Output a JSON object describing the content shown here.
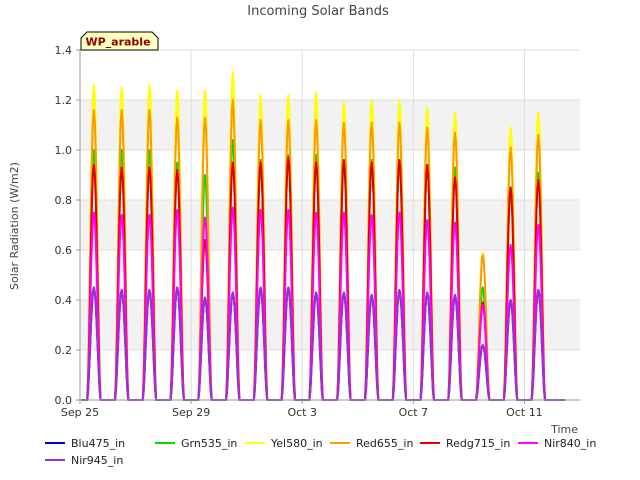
{
  "chart_data": {
    "type": "line",
    "title": "Incoming Solar Bands",
    "xlabel": "Time",
    "ylabel": "Solar Radiation (W/m2)",
    "ylim": [
      0,
      1.4
    ],
    "yticks": [
      "0.0",
      "0.2",
      "0.4",
      "0.6",
      "0.8",
      "1.0",
      "1.2",
      "1.4"
    ],
    "xlim_day": [
      0,
      18
    ],
    "xticks": [
      {
        "day": 0,
        "label": "Sep 25"
      },
      {
        "day": 4,
        "label": "Sep 29"
      },
      {
        "day": 8,
        "label": "Oct 3"
      },
      {
        "day": 12,
        "label": "Oct 7"
      },
      {
        "day": 16,
        "label": "Oct 11"
      }
    ],
    "annotation": "WP_arable",
    "grid": true,
    "legend_position": "bottom",
    "days": [
      0.5,
      1.5,
      2.5,
      3.5,
      4.5,
      5.5,
      6.5,
      7.5,
      8.5,
      9.5,
      10.5,
      11.5,
      12.5,
      13.5,
      14.5,
      15.5,
      16.5
    ],
    "series": [
      {
        "name": "Blu475_in",
        "color": "#0000cc",
        "peaks": [
          0.45,
          0.44,
          0.44,
          0.45,
          0.41,
          0.43,
          0.45,
          0.45,
          0.43,
          0.43,
          0.42,
          0.44,
          0.43,
          0.42,
          0.22,
          0.4,
          0.44
        ]
      },
      {
        "name": "Grn535_in",
        "color": "#00dd00",
        "peaks": [
          1.0,
          1.0,
          1.0,
          0.95,
          0.9,
          1.04,
          0.96,
          0.98,
          0.98,
          0.96,
          0.96,
          0.96,
          0.94,
          0.93,
          0.45,
          0.85,
          0.91
        ]
      },
      {
        "name": "Yel580_in",
        "color": "#ffff00",
        "peaks": [
          1.26,
          1.25,
          1.26,
          1.24,
          1.24,
          1.31,
          1.22,
          1.22,
          1.23,
          1.19,
          1.2,
          1.2,
          1.17,
          1.15,
          0.59,
          1.09,
          1.15
        ]
      },
      {
        "name": "Red655_in",
        "color": "#ff9900",
        "peaks": [
          1.16,
          1.16,
          1.16,
          1.13,
          1.13,
          1.2,
          1.12,
          1.12,
          1.12,
          1.11,
          1.11,
          1.11,
          1.09,
          1.07,
          0.58,
          1.01,
          1.06
        ]
      },
      {
        "name": "Redg715_in",
        "color": "#dd0000",
        "peaks": [
          0.94,
          0.93,
          0.93,
          0.92,
          0.64,
          0.95,
          0.95,
          0.97,
          0.95,
          0.96,
          0.95,
          0.96,
          0.94,
          0.89,
          0.39,
          0.85,
          0.88
        ]
      },
      {
        "name": "Nir840_in",
        "color": "#ff00ff",
        "peaks": [
          0.75,
          0.74,
          0.74,
          0.76,
          0.73,
          0.77,
          0.76,
          0.76,
          0.75,
          0.75,
          0.74,
          0.75,
          0.72,
          0.71,
          0.38,
          0.62,
          0.7
        ]
      },
      {
        "name": "Nir945_in",
        "color": "#9933cc",
        "peaks": [
          0.45,
          0.44,
          0.44,
          0.45,
          0.41,
          0.43,
          0.45,
          0.45,
          0.43,
          0.43,
          0.42,
          0.44,
          0.43,
          0.42,
          0.22,
          0.4,
          0.44
        ]
      }
    ]
  }
}
